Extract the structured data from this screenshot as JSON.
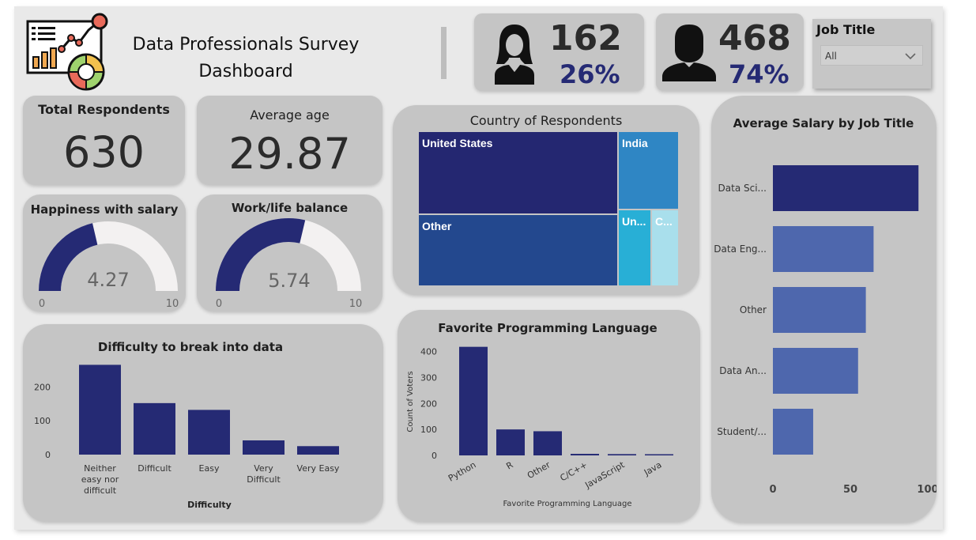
{
  "header": {
    "title_line1": "Data Professionals Survey",
    "title_line2": "Dashboard",
    "logo_icon": "analytics-dashboard-icon"
  },
  "kpis": {
    "female": {
      "icon": "female-user-icon",
      "count": "162",
      "percent": "26%"
    },
    "male": {
      "icon": "male-user-icon",
      "count": "468",
      "percent": "74%"
    }
  },
  "filter": {
    "label": "Job Title",
    "selected": "All"
  },
  "cards": {
    "total_respondents": {
      "label": "Total Respondents",
      "value": "630"
    },
    "average_age": {
      "label": "Average age",
      "value": "29.87"
    }
  },
  "gauges": {
    "happiness": {
      "label": "Happiness with salary",
      "value": 4.27,
      "value_text": "4.27",
      "min": "0",
      "max": "10"
    },
    "worklife": {
      "label": "Work/life balance",
      "value": 5.74,
      "value_text": "5.74",
      "min": "0",
      "max": "10"
    }
  },
  "treemap": {
    "title": "Country of Respondents",
    "tiles": [
      {
        "label": "United States",
        "color": "#242771"
      },
      {
        "label": "Other",
        "color": "#23488e"
      },
      {
        "label": "India",
        "color": "#2f86c4"
      },
      {
        "label": "Un...",
        "color": "#28afd6"
      },
      {
        "label": "C...",
        "color": "#a9dfec"
      }
    ]
  },
  "colors": {
    "navy": "#252a74",
    "steel": "#4e67ad",
    "panel": "#c5c5c5"
  },
  "chart_data": [
    {
      "type": "bar",
      "title": "Difficulty to break into data",
      "xlabel": "Difficulty",
      "ylabel": "",
      "categories": [
        "Neither easy nor difficult",
        "Difficult",
        "Easy",
        "Very Difficult",
        "Very Easy"
      ],
      "values": [
        265,
        152,
        132,
        42,
        25
      ],
      "yticks": [
        0,
        100,
        200
      ],
      "ylim": [
        0,
        280
      ]
    },
    {
      "type": "bar",
      "title": "Favorite Programming Language",
      "xlabel": "Favorite Programming Language",
      "ylabel": "Count of Voters",
      "categories": [
        "Python",
        "R",
        "Other",
        "C/C++",
        "JavaScript",
        "Java"
      ],
      "values": [
        418,
        100,
        93,
        6,
        5,
        3
      ],
      "yticks": [
        0,
        100,
        200,
        300,
        400
      ],
      "ylim": [
        0,
        420
      ]
    },
    {
      "type": "bar",
      "orientation": "horizontal",
      "title": "Average Salary by Job Title",
      "categories": [
        "Data Sci...",
        "Data Eng...",
        "Other",
        "Data An...",
        "Student/..."
      ],
      "values": [
        94,
        65,
        60,
        55,
        26
      ],
      "colors": [
        "#252a74",
        "#4e67ad",
        "#4e67ad",
        "#4e67ad",
        "#4e67ad"
      ],
      "xticks": [
        0,
        50,
        100
      ],
      "xlim": [
        0,
        100
      ]
    }
  ]
}
